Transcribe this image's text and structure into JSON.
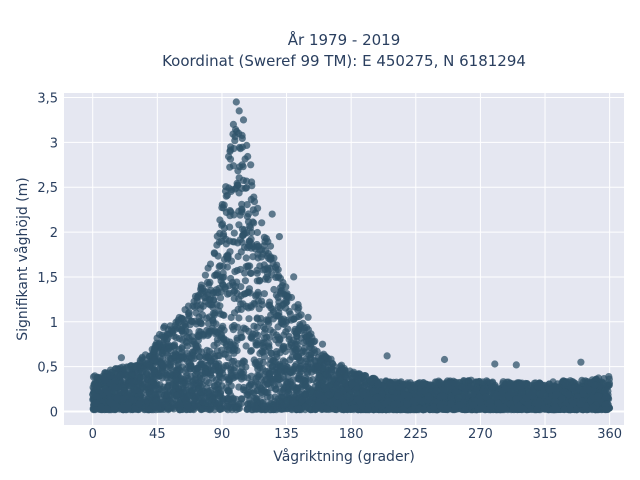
{
  "chart_data": {
    "type": "scatter",
    "title_line1": "År 1979 - 2019",
    "title_line2": "Koordinat (Sweref 99 TM): E 450275, N 6181294",
    "xlabel": "Vågriktning (grader)",
    "ylabel": "Signifikant våghöjd (m)",
    "xlim": [
      -20,
      370
    ],
    "ylim": [
      -0.15,
      3.55
    ],
    "x_ticks": [
      0,
      45,
      90,
      135,
      180,
      225,
      270,
      315,
      360
    ],
    "y_ticks": [
      0,
      0.5,
      1,
      1.5,
      2,
      2.5,
      3,
      3.5
    ],
    "y_tick_labels": [
      "0",
      "0,5",
      "1",
      "1,5",
      "2",
      "2,5",
      "3",
      "3,5"
    ],
    "grid": true,
    "marker_color": "#2f5369",
    "background_color": "#e5e7f1",
    "envelope": {
      "x": [
        0,
        10,
        20,
        30,
        40,
        45,
        50,
        60,
        70,
        80,
        85,
        90,
        95,
        100,
        105,
        110,
        115,
        120,
        125,
        130,
        140,
        150,
        160,
        170,
        180,
        190,
        200,
        225,
        250,
        270,
        300,
        315,
        330,
        345,
        360
      ],
      "y_max": [
        0.4,
        0.45,
        0.5,
        0.55,
        0.7,
        0.85,
        0.95,
        1.05,
        1.25,
        1.6,
        1.9,
        2.3,
        2.9,
        3.3,
        3.1,
        2.8,
        2.4,
        2.0,
        1.8,
        1.6,
        1.3,
        0.95,
        0.65,
        0.55,
        0.45,
        0.4,
        0.35,
        0.32,
        0.35,
        0.35,
        0.32,
        0.32,
        0.35,
        0.35,
        0.4
      ]
    },
    "notable_points": [
      {
        "x": 100,
        "y": 3.45
      },
      {
        "x": 102,
        "y": 3.35
      },
      {
        "x": 98,
        "y": 3.2
      },
      {
        "x": 105,
        "y": 3.25
      },
      {
        "x": 96,
        "y": 2.95
      },
      {
        "x": 110,
        "y": 2.75
      },
      {
        "x": 125,
        "y": 2.2
      },
      {
        "x": 130,
        "y": 1.95
      },
      {
        "x": 140,
        "y": 1.5
      },
      {
        "x": 150,
        "y": 1.05
      },
      {
        "x": 160,
        "y": 0.75
      },
      {
        "x": 205,
        "y": 0.62
      },
      {
        "x": 245,
        "y": 0.58
      },
      {
        "x": 280,
        "y": 0.53
      },
      {
        "x": 295,
        "y": 0.52
      },
      {
        "x": 340,
        "y": 0.55
      },
      {
        "x": 20,
        "y": 0.6
      },
      {
        "x": 50,
        "y": 0.95
      },
      {
        "x": 60,
        "y": 1.0
      }
    ]
  }
}
